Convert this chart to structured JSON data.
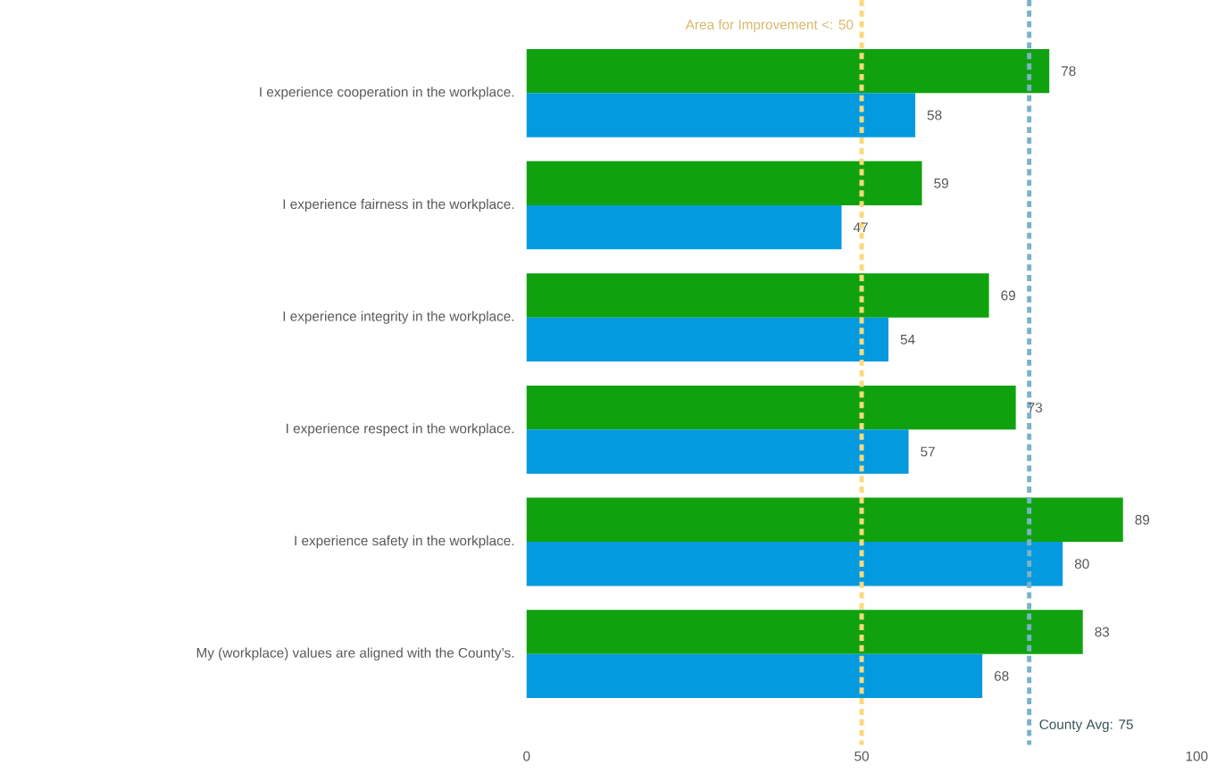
{
  "chart_data": {
    "type": "bar",
    "orientation": "horizontal",
    "categories": [
      "I experience cooperation in the workplace.",
      "I experience fairness in the workplace.",
      "I experience integrity in the workplace.",
      "I experience respect in the workplace.",
      "I experience safety in the workplace.",
      "My (workplace) values are aligned with the County’s."
    ],
    "series": [
      {
        "color": "#10a20e",
        "values": [
          78,
          59,
          69,
          73,
          89,
          83
        ]
      },
      {
        "color": "#039adf",
        "values": [
          58,
          47,
          54,
          57,
          80,
          68
        ]
      }
    ],
    "xlim": [
      0,
      100
    ],
    "xticks": [
      0,
      50,
      100
    ],
    "grid": false,
    "data_labels": true,
    "ref_lines": [
      {
        "axis": "x",
        "value": 50,
        "label": "Area for Improvement <: 50",
        "color": "#fcd97a",
        "line_style": "dashed"
      },
      {
        "axis": "x",
        "value": 75,
        "label": "County Avg: 75",
        "color": "#7ab3c6",
        "line_style": "dashed"
      }
    ]
  }
}
